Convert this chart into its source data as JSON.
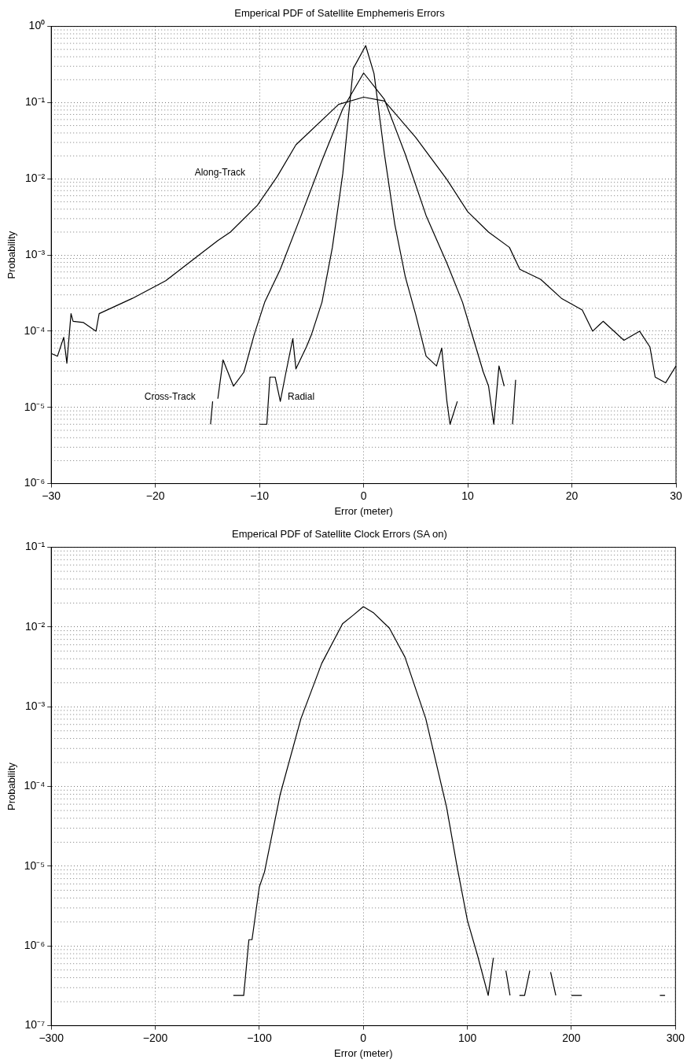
{
  "chart_data": [
    {
      "type": "line",
      "title": "Emperical PDF of Satellite Emphemeris Errors",
      "xlabel": "Error (meter)",
      "ylabel": "Probability",
      "log": "y",
      "grid": true,
      "marker": "none",
      "xlim": [
        -30,
        30
      ],
      "xticks": [
        -30,
        -20,
        -10,
        0,
        10,
        20,
        30
      ],
      "ylim": [
        1e-06,
        1
      ],
      "yticks": [
        {
          "value": 1e-06,
          "label": "10⁻⁶"
        },
        {
          "value": 1e-05,
          "label": "10⁻⁵"
        },
        {
          "value": 0.0001,
          "label": "10⁻⁴"
        },
        {
          "value": 0.001,
          "label": "10⁻³"
        },
        {
          "value": 0.01,
          "label": "10⁻²"
        },
        {
          "value": 0.1,
          "label": "10⁻¹"
        },
        {
          "value": 1,
          "label": "10⁰"
        }
      ],
      "series": [
        {
          "name": "Along-Track",
          "color": "#000000",
          "x": [
            -30,
            -29.4,
            -28.8,
            -28.5,
            -28.1,
            -27.9,
            -26.9,
            -25.7,
            -25.4,
            -22.2,
            -19,
            -15.6,
            -14,
            -12.8,
            -10.2,
            -8.3,
            -6.5,
            -2.4,
            0,
            2,
            5,
            8,
            10,
            12,
            14,
            15,
            17,
            19,
            21,
            22,
            23,
            25,
            26.5,
            27.5,
            28,
            29,
            30
          ],
          "values": [
            5.1e-05,
            4.7e-05,
            8.3e-05,
            3.8e-05,
            0.00017,
            0.000135,
            0.00013,
            0.0001,
            0.00017,
            0.00027,
            0.00046,
            0.00105,
            0.00155,
            0.002,
            0.0045,
            0.0107,
            0.028,
            0.095,
            0.118,
            0.105,
            0.035,
            0.0098,
            0.0037,
            0.002,
            0.00126,
            0.00065,
            0.00048,
            0.00027,
            0.00019,
            0.0001,
            0.000135,
            7.6e-05,
            0.0001,
            6.2e-05,
            2.5e-05,
            2.1e-05,
            3.5e-05
          ]
        },
        {
          "name": "Cross-Track",
          "color": "#000000",
          "x": [
            -14.7,
            -14.5,
            -14.3,
            -14,
            -13.5,
            -12.5,
            -11.5,
            -10.5,
            -9.5,
            -8,
            -6,
            -4,
            -2,
            0,
            2,
            4,
            6,
            8,
            9.5,
            10.5,
            11.5,
            12,
            12.5,
            13,
            13.5,
            14,
            14.3,
            14.6
          ],
          "values": [
            6e-06,
            1.2e-05,
            null,
            1.3e-05,
            4.2e-05,
            1.9e-05,
            2.9e-05,
            9.1e-05,
            0.00024,
            0.00065,
            0.0033,
            0.0174,
            0.083,
            0.245,
            0.11,
            0.021,
            0.0033,
            0.00078,
            0.00024,
            8.3e-05,
            2.9e-05,
            1.9e-05,
            6e-06,
            3.5e-05,
            1.9e-05,
            null,
            6e-06,
            2.3e-05
          ]
        },
        {
          "name": "Radial",
          "color": "#000000",
          "x": [
            -10,
            -9.3,
            -9,
            -8.5,
            -8,
            -7.5,
            -6.8,
            -6.5,
            -5.5,
            -5,
            -4,
            -3,
            -2,
            -1,
            0.2,
            1,
            2,
            3,
            4,
            5,
            6,
            7,
            7.5,
            8,
            8.3,
            9
          ],
          "values": [
            6e-06,
            6e-06,
            2.5e-05,
            2.5e-05,
            1.2e-05,
            2.7e-05,
            8e-05,
            3.2e-05,
            6.2e-05,
            9.1e-05,
            0.00024,
            0.00126,
            0.0117,
            0.28,
            0.56,
            0.24,
            0.021,
            0.0025,
            0.00052,
            0.000166,
            4.7e-05,
            3.5e-05,
            6e-05,
            1.2e-05,
            6e-06,
            1.2e-05
          ]
        }
      ]
    },
    {
      "type": "line",
      "title": "Emperical PDF of Satellite Clock Errors (SA on)",
      "xlabel": "Error (meter)",
      "ylabel": "Probability",
      "log": "y",
      "grid": true,
      "marker": "none",
      "xlim": [
        -300,
        300
      ],
      "xticks": [
        -300,
        -200,
        -100,
        0,
        100,
        200,
        300
      ],
      "ylim": [
        1e-07,
        0.1
      ],
      "yticks": [
        {
          "value": 1e-07,
          "label": "10⁻⁷"
        },
        {
          "value": 1e-06,
          "label": "10⁻⁶"
        },
        {
          "value": 1e-05,
          "label": "10⁻⁵"
        },
        {
          "value": 0.0001,
          "label": "10⁻⁴"
        },
        {
          "value": 0.001,
          "label": "10⁻³"
        },
        {
          "value": 0.01,
          "label": "10⁻²"
        },
        {
          "value": 0.1,
          "label": "10⁻¹"
        }
      ],
      "series": [
        {
          "color": "#000000",
          "x": [
            -125,
            -115,
            -110,
            -107,
            -100,
            -95,
            -80,
            -60,
            -40,
            -20,
            -10,
            0,
            10,
            25,
            40,
            60,
            80,
            90,
            100,
            110,
            120,
            125,
            131,
            137,
            141,
            145,
            150,
            155,
            160,
            170,
            180,
            185,
            195,
            200,
            210,
            250,
            285,
            290
          ],
          "values": [
            2.4e-07,
            2.4e-07,
            1.2e-06,
            1.2e-06,
            5.5e-06,
            8.5e-06,
            7.9e-05,
            0.00071,
            0.0035,
            0.011,
            0.014,
            0.018,
            0.015,
            0.0097,
            0.0042,
            0.00071,
            5.5e-05,
            1e-05,
            2.1e-06,
            7.4e-07,
            2.4e-07,
            7.1e-07,
            null,
            4.9e-07,
            2.4e-07,
            null,
            2.4e-07,
            2.4e-07,
            4.9e-07,
            null,
            4.7e-07,
            2.4e-07,
            null,
            2.4e-07,
            2.4e-07,
            null,
            2.4e-07,
            2.4e-07
          ]
        }
      ]
    }
  ]
}
